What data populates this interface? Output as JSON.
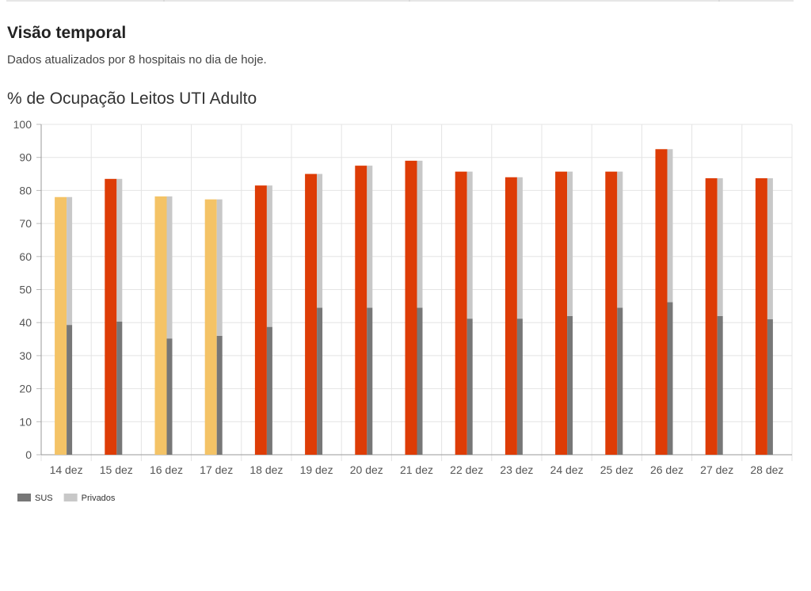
{
  "page": {
    "title": "Visão temporal",
    "subtitle": "Dados atualizados por 8 hospitais no dia de hoje."
  },
  "chart_data": {
    "type": "bar",
    "title": "% de Ocupação Leitos UTI Adulto",
    "categories": [
      "14 dez",
      "15 dez",
      "16 dez",
      "17 dez",
      "18 dez",
      "19 dez",
      "20 dez",
      "21 dez",
      "22 dez",
      "23 dez",
      "24 dez",
      "25 dez",
      "26 dez",
      "27 dez",
      "28 dez"
    ],
    "total": {
      "values": [
        78,
        83.5,
        78.2,
        77.3,
        81.5,
        85,
        87.5,
        89,
        85.7,
        84,
        85.7,
        85.7,
        92.5,
        83.7,
        83.7
      ],
      "colors": [
        "#f4c366",
        "#dd3c06",
        "#f4c366",
        "#f4c366",
        "#dd3c06",
        "#dd3c06",
        "#dd3c06",
        "#dd3c06",
        "#dd3c06",
        "#dd3c06",
        "#dd3c06",
        "#dd3c06",
        "#dd3c06",
        "#dd3c06",
        "#dd3c06"
      ]
    },
    "series": [
      {
        "name": "SUS",
        "color": "#777777",
        "values": [
          39.3,
          40.3,
          35.2,
          36,
          38.7,
          44.5,
          44.5,
          44.5,
          41.2,
          41.2,
          42,
          44.5,
          46.2,
          42,
          41
        ]
      },
      {
        "name": "Privados",
        "color": "#c8c8c8",
        "values": [
          38.7,
          43.2,
          43,
          41.3,
          42.8,
          40.5,
          43,
          44.5,
          44.5,
          42.8,
          43.7,
          41.2,
          46.3,
          41.7,
          42.7
        ]
      }
    ],
    "ylim": [
      0,
      100
    ],
    "yticks": [
      0,
      10,
      20,
      30,
      40,
      50,
      60,
      70,
      80,
      90,
      100
    ],
    "grid": true
  }
}
